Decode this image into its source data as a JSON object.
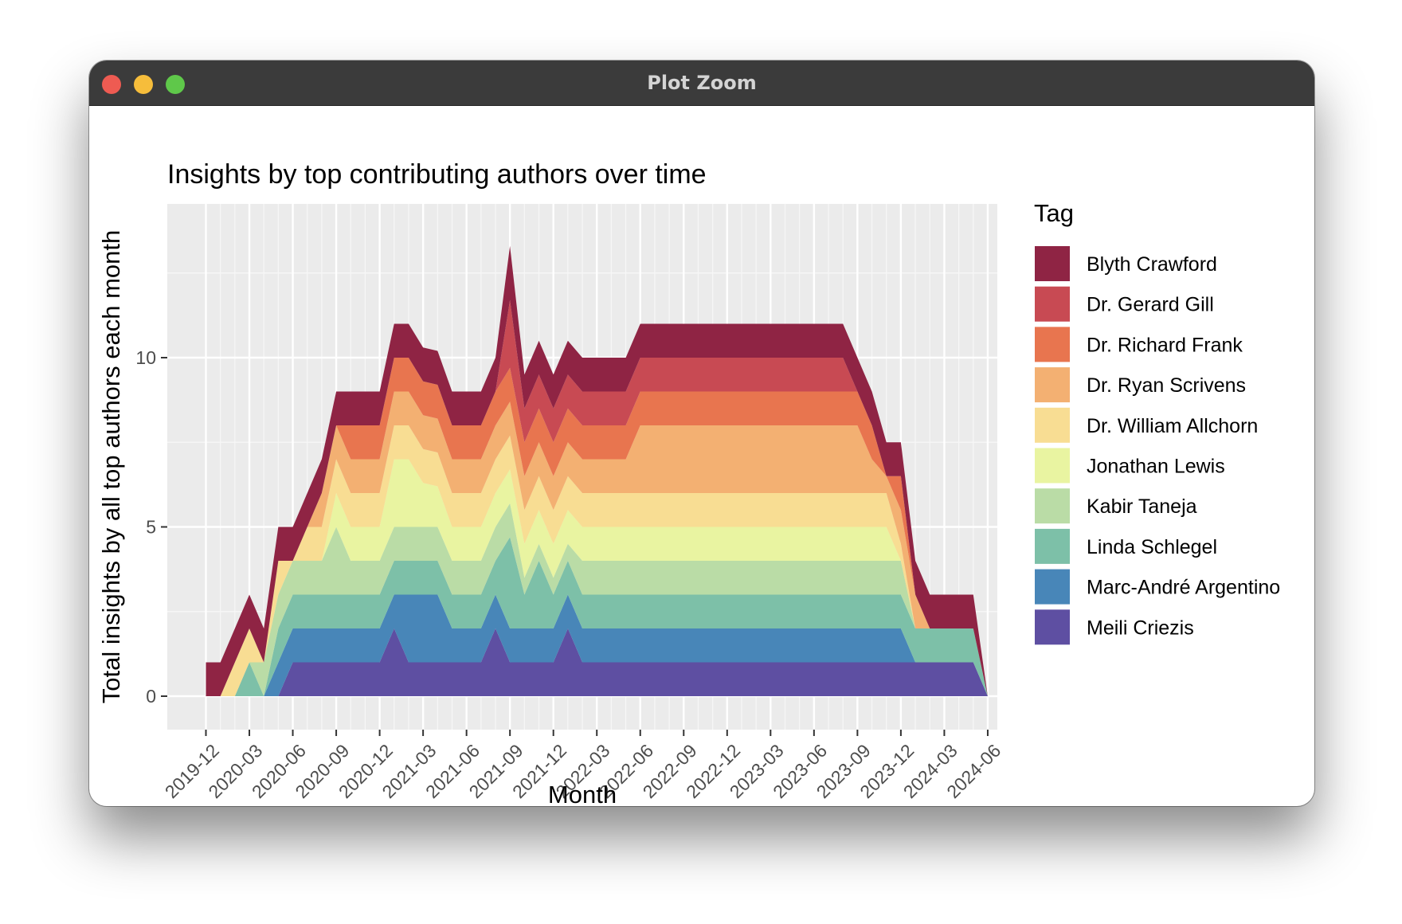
{
  "window": {
    "title": "Plot Zoom"
  },
  "chart_data": {
    "type": "area",
    "stacked": true,
    "title": "Insights by top contributing authors over time",
    "xlabel": "Month",
    "ylabel": "Total insights by all top authors each month",
    "legend_title": "Tag",
    "legend_position": "right",
    "grid": true,
    "x_tick_labels": [
      "2019-12",
      "2020-03",
      "2020-06",
      "2020-09",
      "2020-12",
      "2021-03",
      "2021-06",
      "2021-09",
      "2021-12",
      "2022-03",
      "2022-06",
      "2022-09",
      "2022-12",
      "2023-03",
      "2023-06",
      "2023-09",
      "2023-12",
      "2024-03",
      "2024-06"
    ],
    "y_tick_labels": [
      "0",
      "5",
      "10"
    ],
    "ylim": [
      0,
      14.8
    ],
    "x": [
      "2019-12",
      "2020-01",
      "2020-02",
      "2020-03",
      "2020-04",
      "2020-05",
      "2020-06",
      "2020-07",
      "2020-08",
      "2020-09",
      "2020-10",
      "2020-11",
      "2020-12",
      "2021-01",
      "2021-02",
      "2021-03",
      "2021-04",
      "2021-05",
      "2021-06",
      "2021-07",
      "2021-08",
      "2021-09",
      "2021-10",
      "2021-11",
      "2021-12",
      "2022-01",
      "2022-02",
      "2022-03",
      "2022-04",
      "2022-05",
      "2022-06",
      "2022-07",
      "2022-08",
      "2022-09",
      "2022-10",
      "2022-11",
      "2022-12",
      "2023-01",
      "2023-02",
      "2023-03",
      "2023-04",
      "2023-05",
      "2023-06",
      "2023-07",
      "2023-08",
      "2023-09",
      "2023-10",
      "2023-11",
      "2023-12",
      "2024-01",
      "2024-02",
      "2024-03",
      "2024-04",
      "2024-05",
      "2024-06"
    ],
    "series": [
      {
        "name": "Meili Criezis",
        "color": "#5e4fa2",
        "values": [
          0,
          0,
          0,
          0,
          0,
          0,
          1,
          1,
          1,
          1,
          1,
          1,
          1,
          2,
          1,
          1,
          1,
          1,
          1,
          1,
          2,
          1,
          1,
          1,
          1,
          2,
          1,
          1,
          1,
          1,
          1,
          1,
          1,
          1,
          1,
          1,
          1,
          1,
          1,
          1,
          1,
          1,
          1,
          1,
          1,
          1,
          1,
          1,
          1,
          1,
          1,
          1,
          1,
          1,
          0
        ]
      },
      {
        "name": "Marc-André Argentino",
        "color": "#4886b8",
        "values": [
          0,
          0,
          0,
          0,
          0,
          1,
          1,
          1,
          1,
          1,
          1,
          1,
          1,
          1,
          2,
          2,
          2,
          1,
          1,
          1,
          1,
          1,
          1,
          1,
          1,
          1,
          1,
          1,
          1,
          1,
          1,
          1,
          1,
          1,
          1,
          1,
          1,
          1,
          1,
          1,
          1,
          1,
          1,
          1,
          1,
          1,
          1,
          1,
          1,
          0,
          0,
          0,
          0,
          0,
          0
        ]
      },
      {
        "name": "Linda Schlegel",
        "color": "#7dc0a8",
        "values": [
          0,
          0,
          0,
          1,
          0,
          1,
          1,
          1,
          1,
          1,
          1,
          1,
          1,
          1,
          1,
          1,
          1,
          1,
          1,
          1,
          1,
          2.7,
          1,
          2,
          1,
          1,
          1,
          1,
          1,
          1,
          1,
          1,
          1,
          1,
          1,
          1,
          1,
          1,
          1,
          1,
          1,
          1,
          1,
          1,
          1,
          1,
          1,
          1,
          1,
          1,
          1,
          1,
          1,
          1,
          0
        ]
      },
      {
        "name": "Kabir Taneja",
        "color": "#badca6",
        "values": [
          0,
          0,
          0,
          0,
          1,
          1,
          1,
          1,
          1,
          2,
          1,
          1,
          1,
          1,
          1,
          1,
          1,
          1,
          1,
          1,
          1,
          1,
          0.5,
          0.5,
          0.5,
          0.5,
          1,
          1,
          1,
          1,
          1,
          1,
          1,
          1,
          1,
          1,
          1,
          1,
          1,
          1,
          1,
          1,
          1,
          1,
          1,
          1,
          1,
          1,
          1,
          0,
          0,
          0,
          0,
          0,
          0
        ]
      },
      {
        "name": "Jonathan Lewis",
        "color": "#e9f4a1",
        "values": [
          0,
          0,
          0,
          0,
          0,
          0,
          0,
          0,
          0,
          1,
          1,
          1,
          1,
          2,
          2,
          1.3,
          1.2,
          1,
          1,
          1,
          1,
          1,
          1,
          1,
          1,
          1,
          1,
          1,
          1,
          1,
          1,
          1,
          1,
          1,
          1,
          1,
          1,
          1,
          1,
          1,
          1,
          1,
          1,
          1,
          1,
          1,
          1,
          1,
          0,
          0,
          0,
          0,
          0,
          0,
          0
        ]
      },
      {
        "name": "Dr. William Allchorn",
        "color": "#f8dd93",
        "values": [
          0,
          0,
          1,
          1,
          0,
          1,
          0,
          1,
          1,
          1,
          1,
          1,
          1,
          1,
          1,
          1,
          1,
          1,
          1,
          1,
          1,
          1,
          1,
          1,
          1,
          1,
          1,
          1,
          1,
          1,
          1,
          1,
          1,
          1,
          1,
          1,
          1,
          1,
          1,
          1,
          1,
          1,
          1,
          1,
          1,
          1,
          1,
          1,
          0.5,
          0,
          0,
          0,
          0,
          0,
          0
        ]
      },
      {
        "name": "Dr. Ryan Scrivens",
        "color": "#f3b072",
        "values": [
          0,
          0,
          0,
          0,
          0,
          0,
          0,
          0,
          1,
          1,
          1,
          1,
          1,
          1,
          1,
          1,
          1,
          1,
          1,
          1,
          1,
          1,
          1,
          1,
          1,
          1,
          1,
          1,
          1,
          1,
          2,
          2,
          2,
          2,
          2,
          2,
          2,
          2,
          2,
          2,
          2,
          2,
          2,
          2,
          2,
          2,
          1,
          0.5,
          1,
          1,
          0,
          0,
          0,
          0,
          0
        ]
      },
      {
        "name": "Dr. Richard Frank",
        "color": "#e8754f",
        "values": [
          0,
          0,
          0,
          0,
          0,
          0,
          0,
          0,
          0,
          0,
          1,
          1,
          1,
          1,
          1,
          1,
          1,
          1,
          1,
          1,
          1,
          1,
          1,
          1,
          1,
          1,
          1,
          1,
          1,
          1,
          1,
          1,
          1,
          1,
          1,
          1,
          1,
          1,
          1,
          1,
          1,
          1,
          1,
          1,
          1,
          1,
          1,
          0,
          1,
          0,
          0,
          0,
          0,
          0,
          0
        ]
      },
      {
        "name": "Dr. Gerard Gill",
        "color": "#c84a53",
        "values": [
          0,
          0,
          0,
          0,
          0,
          0,
          0,
          0,
          0,
          0,
          0,
          0,
          0,
          0,
          0,
          0,
          0,
          0,
          0,
          0,
          0,
          2,
          1,
          1,
          1,
          1,
          1,
          1,
          1,
          1,
          1,
          1,
          1,
          1,
          1,
          1,
          1,
          1,
          1,
          1,
          1,
          1,
          1,
          1,
          1,
          0,
          0,
          0,
          0,
          0,
          0,
          0,
          0,
          0,
          0
        ]
      },
      {
        "name": "Blyth Crawford",
        "color": "#8f2444",
        "values": [
          1,
          1,
          1,
          1,
          1,
          1,
          1,
          1,
          1,
          1,
          1,
          1,
          1,
          1,
          1,
          1,
          1,
          1,
          1,
          1,
          1,
          1.6,
          1,
          1,
          1,
          1,
          1,
          1,
          1,
          1,
          1,
          1,
          1,
          1,
          1,
          1,
          1,
          1,
          1,
          1,
          1,
          1,
          1,
          1,
          1,
          1,
          1,
          1,
          1,
          1,
          1,
          1,
          1,
          1,
          0
        ]
      }
    ]
  }
}
